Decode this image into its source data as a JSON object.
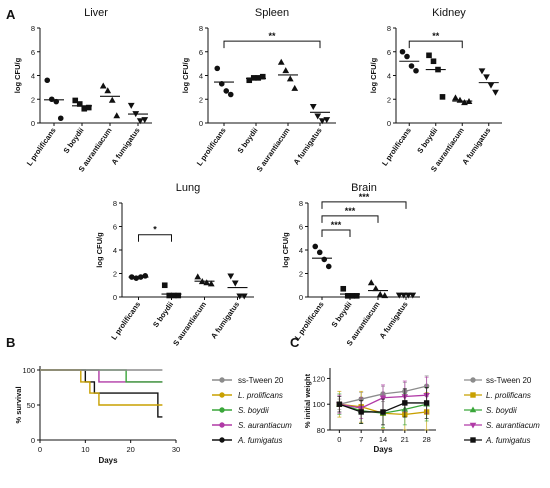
{
  "colors": {
    "axis": "#111111",
    "sig": "#111111",
    "bar": "#111111"
  },
  "panels": {
    "A": "A",
    "B": "B",
    "C": "C"
  },
  "chart_data": [
    {
      "id": "liver",
      "panel": "A",
      "type": "scatter",
      "title": "Liver",
      "ylabel": "log CFU/g",
      "ylim": [
        0,
        8
      ],
      "yticks": [
        0,
        2,
        4,
        6,
        8
      ],
      "categories": [
        "L prolificans",
        "S boydii",
        "S aurantiacum",
        "A fumigatus"
      ],
      "markers": [
        "circle",
        "square",
        "triangle",
        "triangle-down"
      ],
      "points": [
        [
          3.6,
          2.0,
          1.8,
          0.4
        ],
        [
          1.9,
          1.6,
          1.2,
          1.3
        ],
        [
          3.1,
          2.7,
          1.9,
          0.6
        ],
        [
          1.5,
          0.8,
          0.2,
          0.3
        ]
      ],
      "means": [
        1.95,
        1.45,
        2.25,
        0.75
      ],
      "significance": []
    },
    {
      "id": "spleen",
      "panel": "A",
      "type": "scatter",
      "title": "Spleen",
      "ylabel": "log CFU/g",
      "ylim": [
        0,
        8
      ],
      "yticks": [
        0,
        2,
        4,
        6,
        8
      ],
      "categories": [
        "L prolificans",
        "S boydii",
        "S aurantiacum",
        "A fumigatus"
      ],
      "markers": [
        "circle",
        "square",
        "triangle",
        "triangle-down"
      ],
      "points": [
        [
          4.6,
          3.3,
          2.7,
          2.4
        ],
        [
          3.6,
          3.8,
          3.8,
          3.9
        ],
        [
          5.1,
          4.4,
          3.7,
          2.9
        ],
        [
          1.4,
          0.6,
          0.2,
          0.3
        ]
      ],
      "means": [
        3.45,
        3.75,
        4.05,
        0.9
      ],
      "significance": [
        {
          "from": 0,
          "to": 3,
          "y": 6.9,
          "label": "**"
        }
      ]
    },
    {
      "id": "kidney",
      "panel": "A",
      "type": "scatter",
      "title": "Kidney",
      "ylabel": "log CFU/g",
      "ylim": [
        0,
        8
      ],
      "yticks": [
        0,
        2,
        4,
        6,
        8
      ],
      "categories": [
        "L prolificans",
        "S boydii",
        "S aurantiacum",
        "A fumigatus"
      ],
      "markers": [
        "circle",
        "square",
        "triangle",
        "triangle-down"
      ],
      "points": [
        [
          6.0,
          5.6,
          4.8,
          4.4
        ],
        [
          5.7,
          5.2,
          4.5,
          2.2
        ],
        [
          2.1,
          1.9,
          1.7,
          1.8
        ],
        [
          4.4,
          3.9,
          3.2,
          2.6
        ]
      ],
      "means": [
        5.2,
        4.5,
        1.85,
        3.4
      ],
      "significance": [
        {
          "from": 0,
          "to": 2,
          "y": 6.9,
          "label": "**"
        }
      ]
    },
    {
      "id": "lung",
      "panel": "A",
      "type": "scatter",
      "title": "Lung",
      "ylabel": "log CFU/g",
      "ylim": [
        0,
        8
      ],
      "yticks": [
        0,
        2,
        4,
        6,
        8
      ],
      "categories": [
        "L prolificans",
        "S boydii",
        "S aurantiacum",
        "A fumigatus"
      ],
      "markers": [
        "circle",
        "square",
        "triangle",
        "triangle-down"
      ],
      "points": [
        [
          1.7,
          1.6,
          1.7,
          1.8
        ],
        [
          1.0,
          0.0,
          0.0,
          0.0
        ],
        [
          1.7,
          1.3,
          1.2,
          1.1
        ],
        [
          1.8,
          1.2,
          0.1,
          0.1
        ]
      ],
      "means": [
        1.7,
        0.25,
        1.35,
        0.8
      ],
      "significance": [
        {
          "from": 0,
          "to": 1,
          "y": 5.3,
          "label": "*"
        }
      ]
    },
    {
      "id": "brain",
      "panel": "A",
      "type": "scatter",
      "title": "Brain",
      "ylabel": "log CFU/g",
      "ylim": [
        0,
        8
      ],
      "yticks": [
        0,
        2,
        4,
        6,
        8
      ],
      "categories": [
        "L prolificans",
        "S boydii",
        "S aurantiacum",
        "A fumigatus"
      ],
      "markers": [
        "circle",
        "square",
        "triangle",
        "triangle-down"
      ],
      "points": [
        [
          4.3,
          3.8,
          3.2,
          2.6
        ],
        [
          0.7,
          0.1,
          0.1,
          0.1
        ],
        [
          1.2,
          0.7,
          0.2,
          0.1
        ],
        [
          0.05,
          0.05,
          0.05,
          0.05
        ]
      ],
      "means": [
        3.3,
        0.25,
        0.55,
        0.0
      ],
      "significance": [
        {
          "from": 0,
          "to": 1,
          "y": 5.7,
          "label": "***"
        },
        {
          "from": 0,
          "to": 2,
          "y": 6.9,
          "label": "***"
        },
        {
          "from": 0,
          "to": 3,
          "y": 8.1,
          "label": "***"
        }
      ]
    },
    {
      "id": "survival",
      "panel": "B",
      "type": "line",
      "step": true,
      "xlabel": "Days",
      "ylabel": "% survival",
      "xlim": [
        0,
        30
      ],
      "ylim": [
        0,
        100
      ],
      "xticks": [
        0,
        10,
        20,
        30
      ],
      "yticks": [
        0,
        50,
        100
      ],
      "series": [
        {
          "name": "ss-Tween 20",
          "color": "#8c8c8c",
          "marker": "circle",
          "x": [
            0,
            27
          ],
          "y": [
            100,
            100
          ]
        },
        {
          "name": "L. prolificans",
          "color": "#c8a000",
          "marker": "circle",
          "x": [
            0,
            9,
            11,
            13,
            27
          ],
          "y": [
            100,
            83,
            67,
            50,
            50
          ]
        },
        {
          "name": "S. boydii",
          "color": "#3aa63a",
          "marker": "circle",
          "x": [
            0,
            19,
            27
          ],
          "y": [
            100,
            83,
            83
          ]
        },
        {
          "name": "S. aurantiacum",
          "color": "#b03aa6",
          "marker": "circle",
          "x": [
            0,
            13,
            27
          ],
          "y": [
            100,
            83,
            83
          ]
        },
        {
          "name": "A. fumigatus",
          "color": "#111111",
          "marker": "circle",
          "x": [
            0,
            10,
            12,
            14,
            26,
            27
          ],
          "y": [
            100,
            83,
            67,
            67,
            33,
            33
          ]
        }
      ]
    },
    {
      "id": "weight",
      "panel": "C",
      "type": "line",
      "xlabel": "Days",
      "ylabel": "% initial weight",
      "xlim": [
        -3,
        31
      ],
      "ylim": [
        80,
        125
      ],
      "xticks": [
        0,
        7,
        14,
        21,
        28
      ],
      "yticks": [
        80,
        100,
        120
      ],
      "series": [
        {
          "name": "ss-Tween 20",
          "color": "#8c8c8c",
          "marker": "circle",
          "x": [
            0,
            7,
            14,
            21,
            28
          ],
          "y": [
            100,
            104,
            108,
            110,
            114
          ],
          "err": [
            4,
            5,
            6,
            7,
            8
          ]
        },
        {
          "name": "L. prolificans",
          "color": "#c8a000",
          "marker": "square",
          "x": [
            0,
            7,
            14,
            21,
            28
          ],
          "y": [
            100,
            98,
            93,
            92,
            94
          ],
          "err": [
            10,
            12,
            12,
            14,
            15
          ]
        },
        {
          "name": "S. boydii",
          "color": "#3aa63a",
          "marker": "triangle",
          "x": [
            0,
            7,
            14,
            21,
            28
          ],
          "y": [
            100,
            95,
            93,
            96,
            100
          ],
          "err": [
            8,
            10,
            11,
            12,
            13
          ]
        },
        {
          "name": "S. aurantiacum",
          "color": "#b03aa6",
          "marker": "triangle-down",
          "x": [
            0,
            7,
            14,
            21,
            28
          ],
          "y": [
            100,
            97,
            105,
            106,
            107
          ],
          "err": [
            7,
            8,
            10,
            12,
            14
          ]
        },
        {
          "name": "A. fumigatus",
          "color": "#111111",
          "marker": "square",
          "x": [
            0,
            7,
            14,
            21,
            28
          ],
          "y": [
            100,
            94,
            94,
            101,
            101
          ],
          "err": [
            6,
            9,
            10,
            11,
            12
          ]
        }
      ]
    }
  ]
}
